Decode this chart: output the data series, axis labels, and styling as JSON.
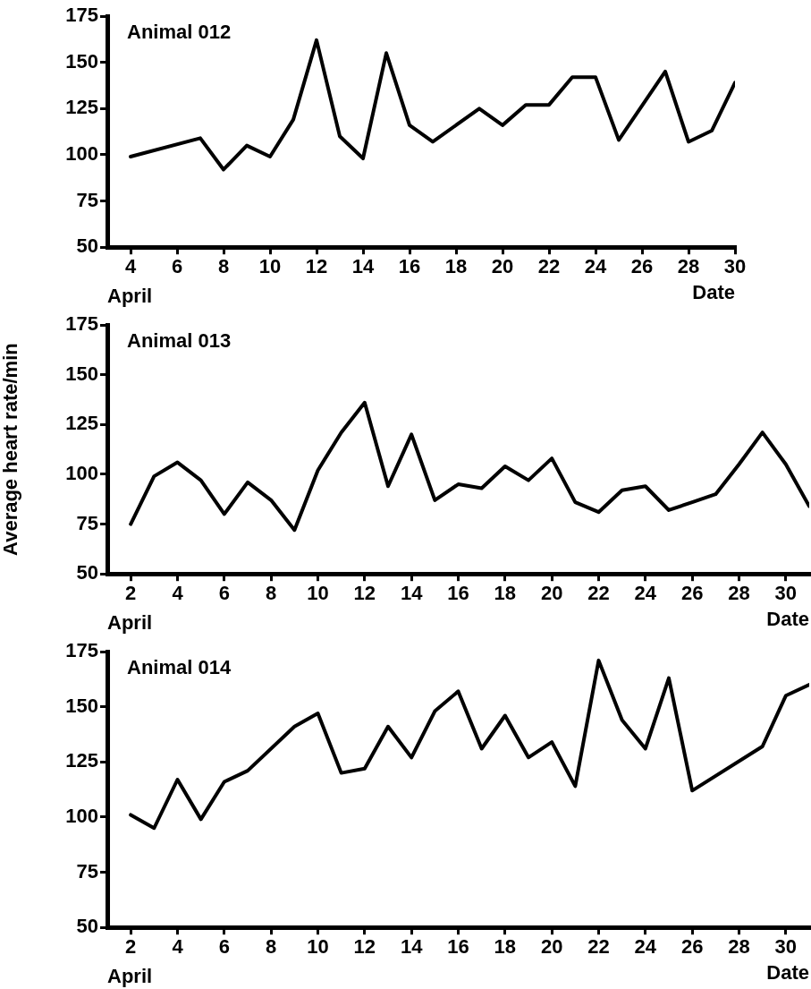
{
  "chart_data": [
    {
      "type": "line",
      "title": "Animal 012",
      "xlabel": "Date",
      "annotations": [
        "April"
      ],
      "color": "#000000",
      "marker": "none",
      "line_style": "solid",
      "x": [
        4,
        7,
        8,
        9,
        10,
        11,
        12,
        13,
        14,
        15,
        16,
        17,
        19,
        20,
        21,
        22,
        23,
        24,
        25,
        27,
        28,
        29,
        30
      ],
      "values": [
        99,
        109,
        92,
        105,
        99,
        119,
        162,
        110,
        98,
        155,
        116,
        107,
        125,
        116,
        127,
        127,
        142,
        142,
        108,
        145,
        107,
        113,
        139
      ],
      "xlim": [
        3,
        30
      ],
      "xticks": [
        4,
        6,
        8,
        10,
        12,
        14,
        16,
        18,
        20,
        22,
        24,
        26,
        28,
        30
      ],
      "ylim": [
        50,
        175
      ],
      "yticks": [
        50,
        75,
        100,
        125,
        150,
        175
      ]
    },
    {
      "type": "line",
      "title": "Animal 013",
      "xlabel": "Date",
      "ylabel": "Average heart rate/min",
      "annotations": [
        "April"
      ],
      "color": "#000000",
      "marker": "none",
      "line_style": "solid",
      "x": [
        2,
        3,
        4,
        5,
        6,
        7,
        8,
        9,
        10,
        11,
        12,
        13,
        14,
        15,
        16,
        17,
        18,
        19,
        20,
        21,
        22,
        23,
        24,
        25,
        26,
        27,
        28,
        29,
        30,
        31
      ],
      "values": [
        75,
        99,
        106,
        97,
        80,
        96,
        87,
        72,
        102,
        121,
        136,
        94,
        120,
        87,
        95,
        93,
        104,
        97,
        108,
        86,
        81,
        92,
        94,
        82,
        86,
        90,
        105,
        121,
        105,
        84
      ],
      "xlim": [
        1,
        31
      ],
      "xticks": [
        2,
        4,
        6,
        8,
        10,
        12,
        14,
        16,
        18,
        20,
        22,
        24,
        26,
        28,
        30
      ],
      "ylim": [
        50,
        175
      ],
      "yticks": [
        50,
        75,
        100,
        125,
        150,
        175
      ]
    },
    {
      "type": "line",
      "title": "Animal 014",
      "xlabel": "Date",
      "annotations": [
        "April"
      ],
      "color": "#000000",
      "marker": "none",
      "line_style": "solid",
      "x": [
        2,
        3,
        4,
        5,
        6,
        7,
        9,
        10,
        11,
        12,
        13,
        14,
        15,
        16,
        17,
        18,
        19,
        20,
        21,
        22,
        23,
        24,
        25,
        26,
        29,
        30,
        31
      ],
      "values": [
        101,
        95,
        117,
        99,
        116,
        121,
        141,
        147,
        120,
        122,
        141,
        127,
        148,
        157,
        131,
        146,
        127,
        134,
        114,
        171,
        144,
        131,
        163,
        112,
        132,
        155,
        160
      ],
      "xlim": [
        1,
        31
      ],
      "xticks": [
        2,
        4,
        6,
        8,
        10,
        12,
        14,
        16,
        18,
        20,
        22,
        24,
        26,
        28,
        30
      ],
      "ylim": [
        50,
        175
      ],
      "yticks": [
        50,
        75,
        100,
        125,
        150,
        175
      ]
    }
  ]
}
